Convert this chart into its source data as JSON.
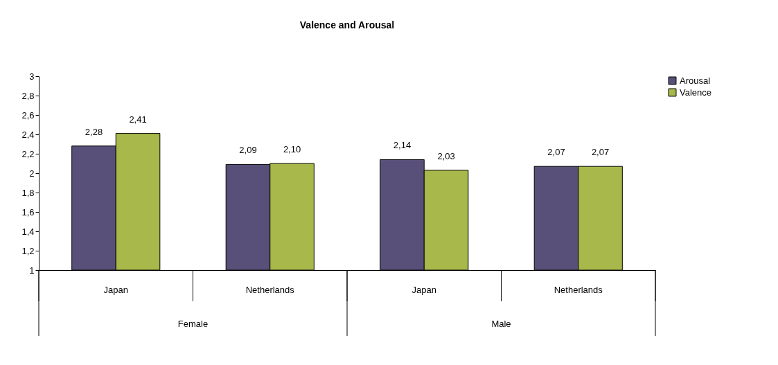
{
  "chart_data": {
    "type": "bar",
    "title": "Valence and Arousal",
    "categories": [
      "Japan",
      "Netherlands",
      "Japan",
      "Netherlands"
    ],
    "series": [
      {
        "name": "Arousal",
        "color": "#585078",
        "values": [
          2.28,
          2.09,
          2.14,
          2.07
        ],
        "value_labels": [
          "2,28",
          "2,09",
          "2,14",
          "2,07"
        ]
      },
      {
        "name": "Valence",
        "color": "#a8b84a",
        "values": [
          2.41,
          2.1,
          2.03,
          2.07
        ],
        "value_labels": [
          "2,41",
          "2,10",
          "2,03",
          "2,07"
        ]
      }
    ],
    "ylim": [
      1,
      3
    ],
    "yticks": [
      1,
      {
        "value": 1.2,
        "label": "1,2"
      },
      {
        "value": 1.4,
        "label": "1,4"
      },
      {
        "value": 1.6,
        "label": "1,6"
      },
      {
        "value": 1.8,
        "label": "1,8"
      },
      2,
      {
        "value": 2.2,
        "label": "2,2"
      },
      {
        "value": 2.4,
        "label": "2,4"
      },
      {
        "value": 2.6,
        "label": "2,6"
      },
      {
        "value": 2.8,
        "label": "2,8"
      },
      3
    ],
    "annotations": [
      "Female",
      "Male"
    ],
    "legend": "right",
    "grid": false
  }
}
